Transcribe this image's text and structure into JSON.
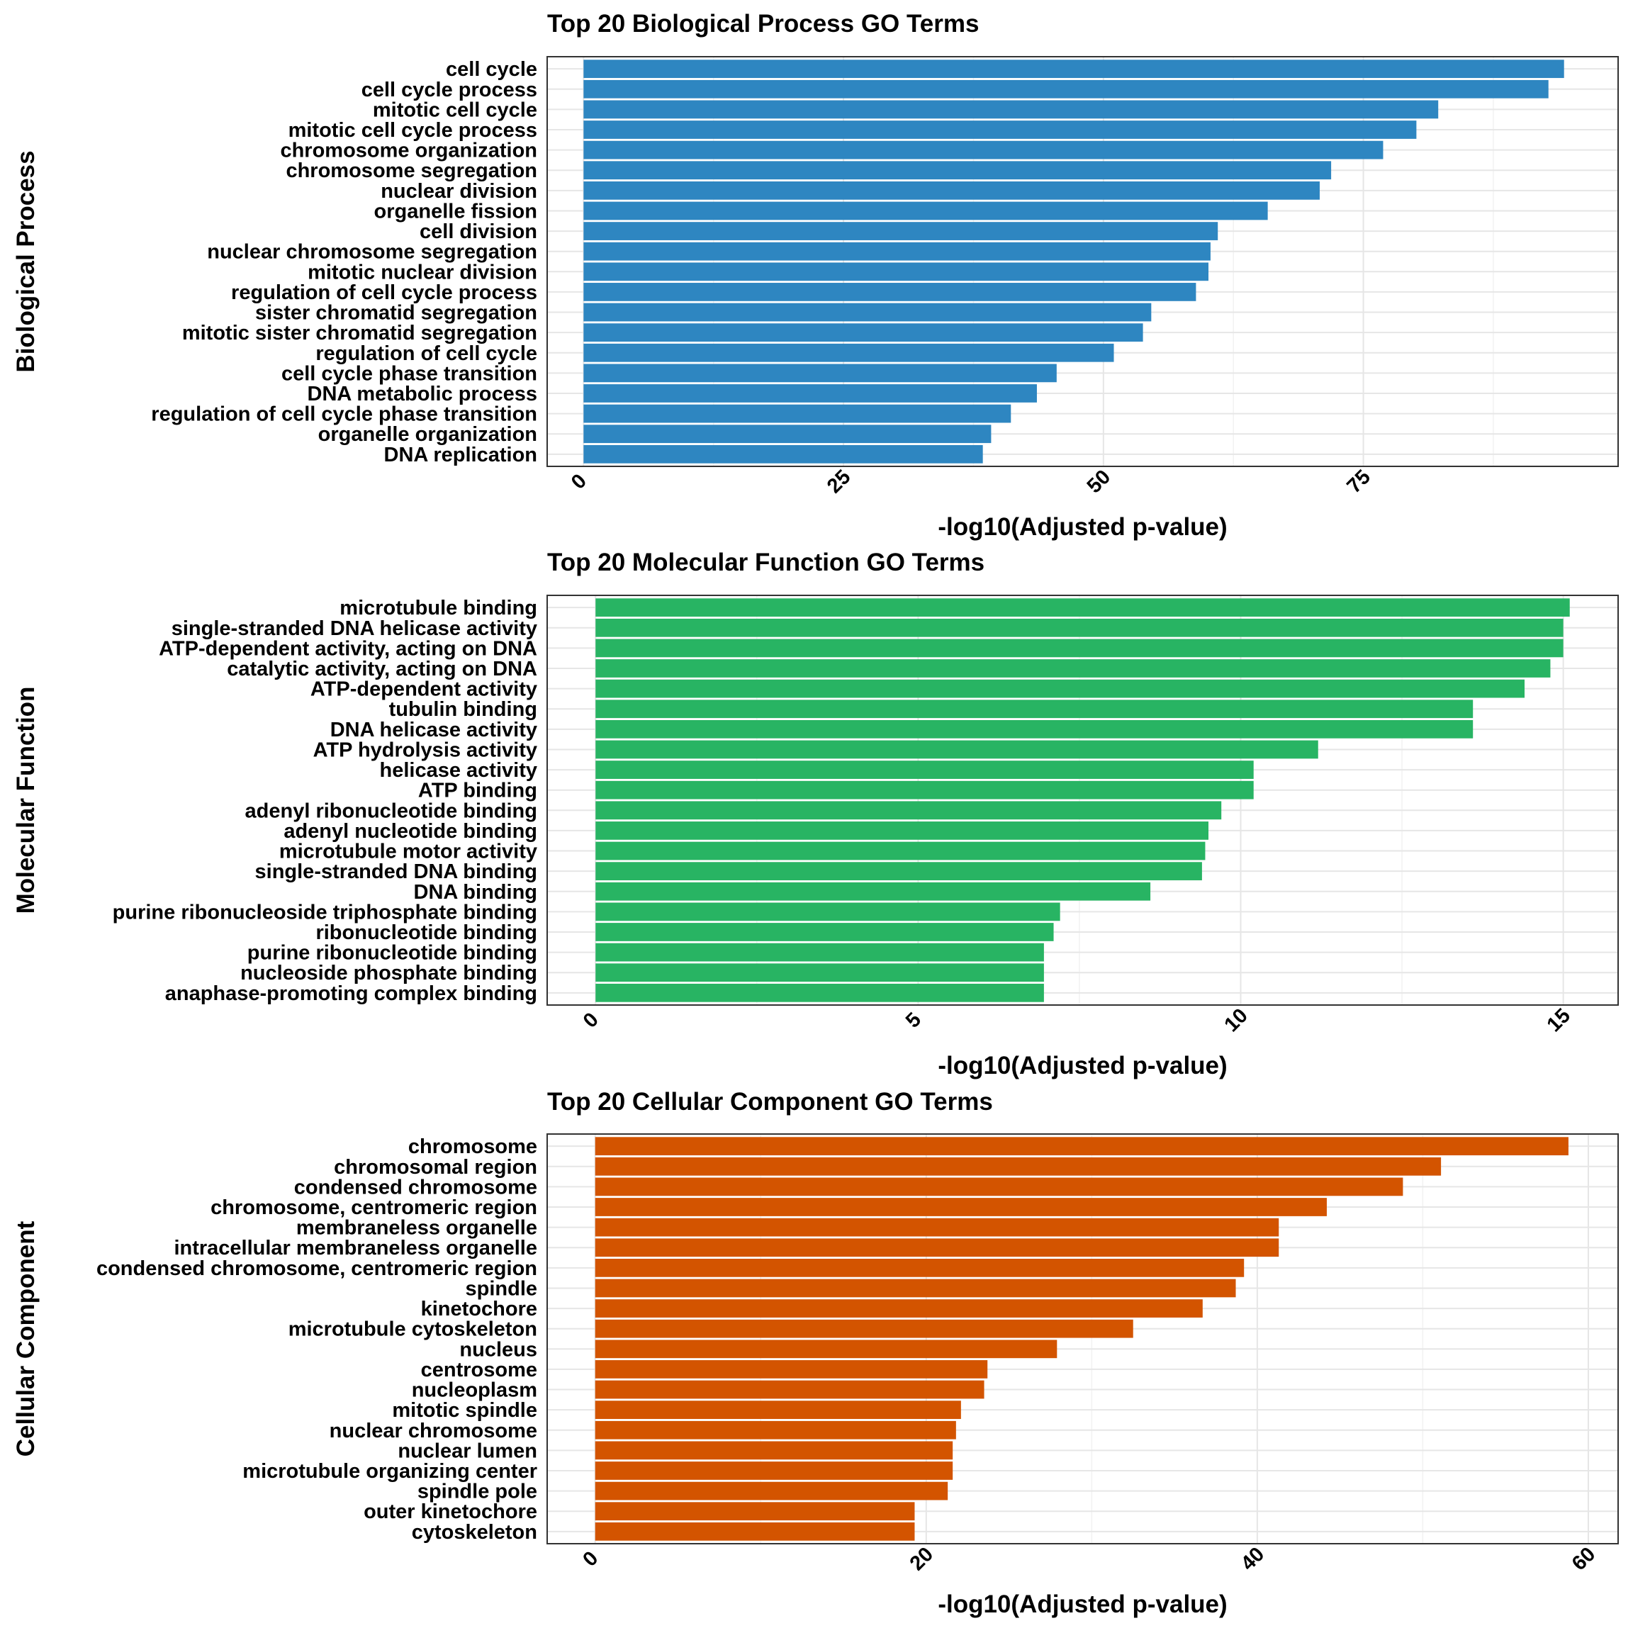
{
  "chart_data": [
    {
      "type": "bar",
      "orientation": "horizontal",
      "title": "Top 20 Biological Process GO Terms",
      "xlabel": "-log10(Adjusted p-value)",
      "ylabel": "Biological Process",
      "xlim": [
        -3.5,
        99.5
      ],
      "xticks": [
        "0",
        "25",
        "50",
        "75"
      ],
      "tick_values": [
        0,
        25,
        50,
        75
      ],
      "grid": true,
      "color": "#2e86c1",
      "categories": [
        "cell cycle",
        "cell cycle process",
        "mitotic cell cycle",
        "mitotic cell cycle process",
        "chromosome organization",
        "chromosome segregation",
        "nuclear division",
        "organelle fission",
        "cell division",
        "nuclear chromosome segregation",
        "mitotic nuclear division",
        "regulation of cell cycle process",
        "sister chromatid segregation",
        "mitotic sister chromatid segregation",
        "regulation of cell cycle",
        "cell cycle phase transition",
        "DNA metabolic process",
        "regulation of cell cycle phase transition",
        "organelle organization",
        "DNA replication"
      ],
      "values": [
        94.3,
        92.8,
        82.2,
        80.1,
        76.9,
        71.9,
        70.8,
        65.8,
        61.0,
        60.3,
        60.1,
        58.9,
        54.6,
        53.8,
        51.0,
        45.5,
        43.6,
        41.1,
        39.2,
        38.4
      ]
    },
    {
      "type": "bar",
      "orientation": "horizontal",
      "title": "Top 20 Molecular Function GO Terms",
      "xlabel": "-log10(Adjusted p-value)",
      "ylabel": "Molecular Function",
      "xlim": [
        -0.75,
        15.85
      ],
      "xticks": [
        "0",
        "5",
        "10",
        "15"
      ],
      "tick_values": [
        0,
        5,
        10,
        15
      ],
      "grid": true,
      "color": "#28b463",
      "categories": [
        "microtubule binding",
        "single-stranded DNA helicase activity",
        "ATP-dependent activity, acting on DNA",
        "catalytic activity, acting on DNA",
        "ATP-dependent activity",
        "tubulin binding",
        "DNA helicase activity",
        "ATP hydrolysis activity",
        "helicase activity",
        "ATP binding",
        "adenyl ribonucleotide binding",
        "adenyl nucleotide binding",
        "microtubule motor activity",
        "single-stranded DNA binding",
        "DNA binding",
        "purine ribonucleoside triphosphate binding",
        "ribonucleotide binding",
        "purine ribonucleotide binding",
        "nucleoside phosphate binding",
        "anaphase-promoting complex binding"
      ],
      "values": [
        15.1,
        15.0,
        15.0,
        14.8,
        14.4,
        13.6,
        13.6,
        11.2,
        10.2,
        10.2,
        9.7,
        9.5,
        9.45,
        9.4,
        8.6,
        7.2,
        7.1,
        6.95,
        6.95,
        6.95
      ]
    },
    {
      "type": "bar",
      "orientation": "horizontal",
      "title": "Top 20 Cellular Component GO Terms",
      "xlabel": "-log10(Adjusted p-value)",
      "ylabel": "Cellular Component",
      "xlim": [
        -2.9,
        61.8
      ],
      "xticks": [
        "0",
        "20",
        "40",
        "60"
      ],
      "tick_values": [
        0,
        20,
        40,
        60
      ],
      "grid": true,
      "color": "#d35400",
      "categories": [
        "chromosome",
        "chromosomal region",
        "condensed chromosome",
        "chromosome, centromeric region",
        "membraneless organelle",
        "intracellular membraneless organelle",
        "condensed chromosome, centromeric region",
        "spindle",
        "kinetochore",
        "microtubule cytoskeleton",
        "nucleus",
        "centrosome",
        "nucleoplasm",
        "mitotic spindle",
        "nuclear chromosome",
        "nuclear lumen",
        "microtubule organizing center",
        "spindle pole",
        "outer kinetochore",
        "cytoskeleton"
      ],
      "values": [
        58.8,
        51.1,
        48.8,
        44.2,
        41.3,
        41.3,
        39.2,
        38.7,
        36.7,
        32.5,
        27.9,
        23.7,
        23.5,
        22.1,
        21.8,
        21.6,
        21.6,
        21.3,
        19.3,
        19.3
      ]
    }
  ]
}
